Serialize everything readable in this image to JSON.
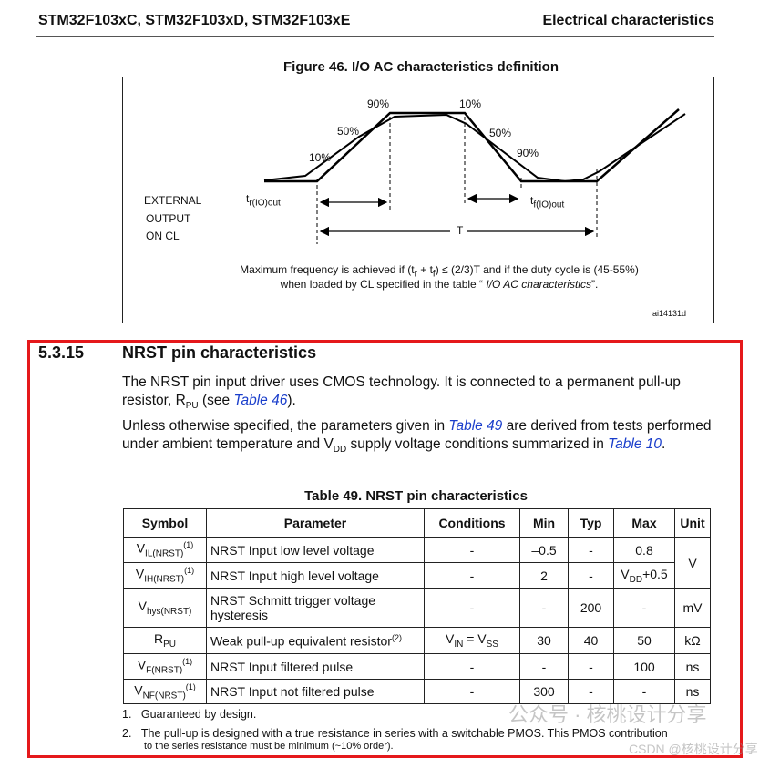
{
  "header": {
    "left": "STM32F103xC, STM32F103xD, STM32F103xE",
    "right": "Electrical characteristics"
  },
  "figure": {
    "title": "Figure 46. I/O AC characteristics definition",
    "labels": {
      "p90a": "90%",
      "p10a": "10%",
      "p50a": "50%",
      "p50b": "50%",
      "p10b": "10%",
      "p90b": "90%",
      "ext1": "EXTERNAL",
      "ext2": "OUTPUT",
      "ext3": "ON CL",
      "tr": "t",
      "tr_sub": "r(IO)out",
      "tf": "t",
      "tf_sub": "f(IO)out",
      "T": "T"
    },
    "note1_a": "Maximum frequency is achieved if (t",
    "note1_r": "r",
    "note1_b": " + t",
    "note1_f": "f",
    "note1_c": ") ≤ (2/3)T and if the duty cycle is (45-55%)",
    "note2_a": "when loaded by CL specified in the table “ ",
    "note2_link": "I/O AC characteristics",
    "note2_b": "”.",
    "id": "ai14131d"
  },
  "section": {
    "number": "5.3.15",
    "title": "NRST pin characteristics",
    "p1_a": "The NRST pin input driver uses CMOS technology. It is connected to a permanent pull-up resistor, R",
    "p1_sub": "PU",
    "p1_b": " (see ",
    "p1_link": "Table 46",
    "p1_c": ").",
    "p2_a": "Unless otherwise specified, the parameters given in ",
    "p2_link1": "Table 49",
    "p2_b": " are derived from tests performed under ambient temperature and V",
    "p2_sub": "DD",
    "p2_c": " supply voltage conditions summarized in ",
    "p2_link2": "Table 10",
    "p2_d": "."
  },
  "table": {
    "title": "Table 49. NRST pin characteristics",
    "headers": [
      "Symbol",
      "Parameter",
      "Conditions",
      "Min",
      "Typ",
      "Max",
      "Unit"
    ],
    "rows": [
      {
        "sym": "V",
        "sub": "IL(NRST)",
        "sup": "(1)",
        "param": "NRST Input low level voltage",
        "cond": "-",
        "min": "–0.5",
        "typ": "-",
        "max": "0.8",
        "unit": "V"
      },
      {
        "sym": "V",
        "sub": "IH(NRST)",
        "sup": "(1)",
        "param": "NRST Input high level voltage",
        "cond": "-",
        "min": "2",
        "typ": "-",
        "max": "V",
        "max_sub": "DD",
        "max_b": "+0.5"
      },
      {
        "sym": "V",
        "sub": "hys(NRST)",
        "param": "NRST Schmitt trigger voltage hysteresis",
        "cond": "-",
        "min": "-",
        "typ": "200",
        "max": "-",
        "unit": "mV"
      },
      {
        "sym": "R",
        "sub": "PU",
        "param": "Weak pull-up equivalent resistor",
        "param_sup": "(2)",
        "cond": "V",
        "cond_sub": "IN",
        "cond_b": " = V",
        "cond_sub2": "SS",
        "min": "30",
        "typ": "40",
        "max": "50",
        "unit": "kΩ"
      },
      {
        "sym": "V",
        "sub": "F(NRST)",
        "sup": "(1)",
        "param": "NRST Input filtered pulse",
        "cond": "-",
        "min": "-",
        "typ": "-",
        "max": "100",
        "unit": "ns"
      },
      {
        "sym": "V",
        "sub": "NF(NRST)",
        "sup": "(1)",
        "param": "NRST Input not filtered pulse",
        "cond": "-",
        "min": "300",
        "typ": "-",
        "max": "-",
        "unit": "ns"
      }
    ]
  },
  "footnotes": [
    "1.",
    "Guaranteed by design.",
    "2.",
    "The pull-up is designed with a true resistance in series with a switchable PMOS. This PMOS contribution",
    "to the series resistance must be minimum (~10% order)."
  ],
  "watermark": {
    "line1": "公众号 · 核桃设计分享",
    "line2": "CSDN @核桃设计分享"
  }
}
